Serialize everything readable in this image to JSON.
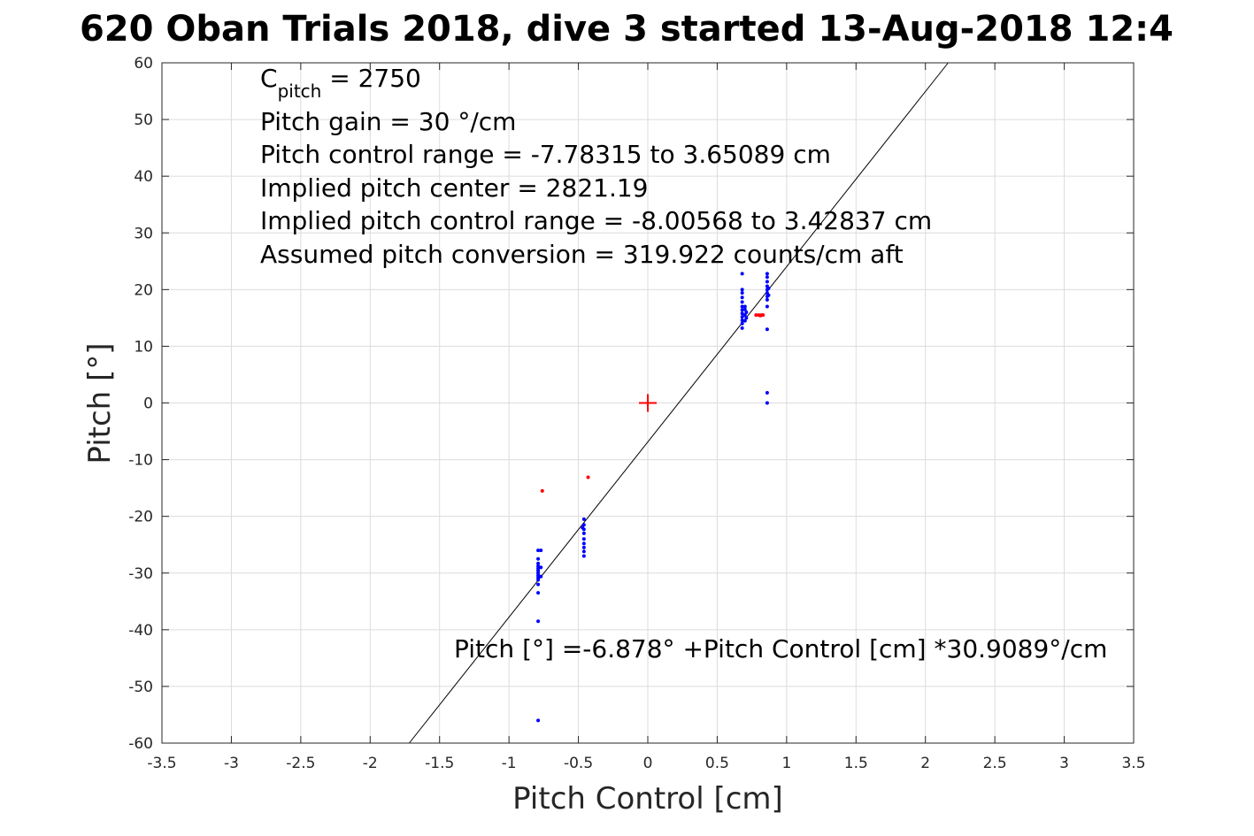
{
  "chart_data": {
    "type": "scatter",
    "title": "620 Oban Trials 2018, dive 3 started 13-Aug-2018 12:4",
    "xlabel": "Pitch Control [cm]",
    "ylabel": "Pitch [°]",
    "xlim": [
      -3.5,
      3.5
    ],
    "ylim": [
      -60,
      60
    ],
    "grid": true,
    "x_ticks": [
      "-3.5",
      "-3",
      "-2.5",
      "-2",
      "-1.5",
      "-1",
      "-0.5",
      "0",
      "0.5",
      "1",
      "1.5",
      "2",
      "2.5",
      "3",
      "3.5"
    ],
    "y_ticks": [
      "-60",
      "-50",
      "-40",
      "-30",
      "-20",
      "-10",
      "0",
      "10",
      "20",
      "30",
      "40",
      "50",
      "60"
    ],
    "annotations": {
      "c_pitch_main": "C",
      "c_pitch_sub": "pitch",
      "c_pitch_value": " = 2750",
      "pitch_gain": "Pitch gain = 30 °/cm",
      "control_range": "Pitch control range = -7.78315 to 3.65089 cm",
      "implied_center": "Implied pitch center = 2821.19",
      "implied_range": "Implied pitch control range = -8.00568 to 3.42837 cm",
      "conversion": "Assumed pitch conversion = 319.922 counts/cm aft",
      "fit_equation": "Pitch [°] =-6.878° +Pitch Control [cm] *30.9089°/cm"
    },
    "fit_line": {
      "intercept": -6.878,
      "slope": 30.9089,
      "color": "#000000"
    },
    "center_marker": {
      "x": 0,
      "y": 0,
      "color": "#ff0000"
    },
    "series": [
      {
        "color": "#0000ff",
        "points": [
          [
            -0.79,
            -26.0
          ],
          [
            -0.79,
            -27.5
          ],
          [
            -0.79,
            -28.3
          ],
          [
            -0.79,
            -28.8
          ],
          [
            -0.79,
            -29.2
          ],
          [
            -0.79,
            -29.6
          ],
          [
            -0.79,
            -30.0
          ],
          [
            -0.79,
            -30.4
          ],
          [
            -0.79,
            -30.8
          ],
          [
            -0.79,
            -31.2
          ],
          [
            -0.79,
            -32.0
          ],
          [
            -0.79,
            -33.5
          ],
          [
            -0.79,
            -38.5
          ],
          [
            -0.79,
            -56.0
          ],
          [
            -0.77,
            -26.0
          ],
          [
            -0.77,
            -29.0
          ],
          [
            -0.77,
            -30.6
          ],
          [
            -0.46,
            -20.5
          ],
          [
            -0.46,
            -21.5
          ],
          [
            -0.46,
            -22.3
          ],
          [
            -0.46,
            -23.0
          ],
          [
            -0.46,
            -24.0
          ],
          [
            -0.46,
            -24.8
          ],
          [
            -0.46,
            -25.5
          ],
          [
            -0.46,
            -26.2
          ],
          [
            -0.46,
            -27.0
          ],
          [
            -0.47,
            -22.0
          ],
          [
            0.68,
            13.2
          ],
          [
            0.68,
            14.0
          ],
          [
            0.68,
            14.6
          ],
          [
            0.68,
            15.2
          ],
          [
            0.68,
            15.8
          ],
          [
            0.68,
            16.4
          ],
          [
            0.68,
            17.0
          ],
          [
            0.68,
            17.8
          ],
          [
            0.68,
            18.6
          ],
          [
            0.68,
            19.4
          ],
          [
            0.68,
            20.0
          ],
          [
            0.68,
            22.8
          ],
          [
            0.7,
            14.5
          ],
          [
            0.7,
            15.5
          ],
          [
            0.7,
            16.5
          ],
          [
            0.7,
            17.0
          ],
          [
            0.71,
            15.0
          ],
          [
            0.71,
            16.0
          ],
          [
            0.86,
            0.0
          ],
          [
            0.86,
            1.8
          ],
          [
            0.86,
            13.0
          ],
          [
            0.86,
            17.0
          ],
          [
            0.86,
            18.2
          ],
          [
            0.86,
            18.8
          ],
          [
            0.86,
            19.4
          ],
          [
            0.86,
            20.0
          ],
          [
            0.86,
            20.6
          ],
          [
            0.86,
            21.4
          ],
          [
            0.86,
            22.2
          ],
          [
            0.86,
            22.8
          ],
          [
            0.87,
            19.0
          ],
          [
            0.87,
            20.2
          ]
        ]
      },
      {
        "color": "#ff0000",
        "points": [
          [
            -0.76,
            -15.5
          ],
          [
            -0.43,
            -13.1
          ],
          [
            0.78,
            15.5
          ],
          [
            0.8,
            15.5
          ],
          [
            0.81,
            15.4
          ],
          [
            0.82,
            15.5
          ],
          [
            0.83,
            15.5
          ]
        ]
      }
    ]
  }
}
